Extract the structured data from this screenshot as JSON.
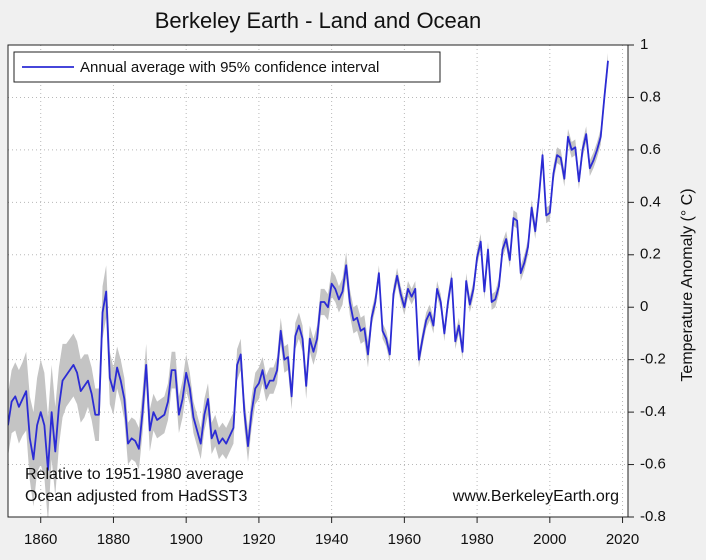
{
  "chart_data": {
    "type": "line",
    "title": "Berkeley Earth - Land and Ocean",
    "y_label": "Temperature Anomaly (° C)",
    "annotations": [
      "Relative to 1951-1980 average",
      "Ocean adjusted from HadSST3",
      "www.BerkeleyEarth.org"
    ],
    "x": [
      1851,
      1852,
      1853,
      1854,
      1855,
      1856,
      1857,
      1858,
      1859,
      1860,
      1861,
      1862,
      1863,
      1864,
      1865,
      1866,
      1867,
      1868,
      1869,
      1870,
      1871,
      1872,
      1873,
      1874,
      1875,
      1876,
      1877,
      1878,
      1879,
      1880,
      1881,
      1882,
      1883,
      1884,
      1885,
      1886,
      1887,
      1888,
      1889,
      1890,
      1891,
      1892,
      1893,
      1894,
      1895,
      1896,
      1897,
      1898,
      1899,
      1900,
      1901,
      1902,
      1903,
      1904,
      1905,
      1906,
      1907,
      1908,
      1909,
      1910,
      1911,
      1912,
      1913,
      1914,
      1915,
      1916,
      1917,
      1918,
      1919,
      1920,
      1921,
      1922,
      1923,
      1924,
      1925,
      1926,
      1927,
      1928,
      1929,
      1930,
      1931,
      1932,
      1933,
      1934,
      1935,
      1936,
      1937,
      1938,
      1939,
      1940,
      1941,
      1942,
      1943,
      1944,
      1945,
      1946,
      1947,
      1948,
      1949,
      1950,
      1951,
      1952,
      1953,
      1954,
      1955,
      1956,
      1957,
      1958,
      1959,
      1960,
      1961,
      1962,
      1963,
      1964,
      1965,
      1966,
      1967,
      1968,
      1969,
      1970,
      1971,
      1972,
      1973,
      1974,
      1975,
      1976,
      1977,
      1978,
      1979,
      1980,
      1981,
      1982,
      1983,
      1984,
      1985,
      1986,
      1987,
      1988,
      1989,
      1990,
      1991,
      1992,
      1993,
      1994,
      1995,
      1996,
      1997,
      1998,
      1999,
      2000,
      2001,
      2002,
      2003,
      2004,
      2005,
      2006,
      2007,
      2008,
      2009,
      2010,
      2011,
      2012,
      2013,
      2014,
      2015,
      2016
    ],
    "series": [
      {
        "name": "Annual average with 95% confidence interval",
        "color": "#2b2bd4",
        "band_color": "#c4c4c4",
        "values": [
          -0.45,
          -0.36,
          -0.34,
          -0.38,
          -0.35,
          -0.32,
          -0.5,
          -0.58,
          -0.45,
          -0.4,
          -0.45,
          -0.62,
          -0.4,
          -0.55,
          -0.38,
          -0.28,
          -0.26,
          -0.24,
          -0.22,
          -0.25,
          -0.32,
          -0.3,
          -0.28,
          -0.33,
          -0.41,
          -0.41,
          -0.02,
          0.06,
          -0.27,
          -0.32,
          -0.23,
          -0.28,
          -0.35,
          -0.52,
          -0.5,
          -0.51,
          -0.54,
          -0.4,
          -0.22,
          -0.47,
          -0.4,
          -0.43,
          -0.42,
          -0.41,
          -0.36,
          -0.24,
          -0.24,
          -0.41,
          -0.35,
          -0.25,
          -0.31,
          -0.42,
          -0.47,
          -0.52,
          -0.41,
          -0.35,
          -0.5,
          -0.47,
          -0.52,
          -0.5,
          -0.52,
          -0.49,
          -0.46,
          -0.22,
          -0.18,
          -0.4,
          -0.53,
          -0.4,
          -0.31,
          -0.29,
          -0.24,
          -0.31,
          -0.28,
          -0.28,
          -0.24,
          -0.09,
          -0.2,
          -0.19,
          -0.34,
          -0.11,
          -0.07,
          -0.12,
          -0.3,
          -0.12,
          -0.17,
          -0.12,
          0.02,
          0.02,
          0.0,
          0.09,
          0.07,
          0.03,
          0.06,
          0.16,
          0.02,
          -0.05,
          -0.04,
          -0.09,
          -0.08,
          -0.18,
          -0.04,
          0.02,
          0.13,
          -0.09,
          -0.12,
          -0.18,
          0.05,
          0.12,
          0.05,
          0.0,
          0.07,
          0.04,
          0.07,
          -0.2,
          -0.12,
          -0.05,
          -0.02,
          -0.07,
          0.07,
          0.02,
          -0.1,
          0.02,
          0.11,
          -0.13,
          -0.07,
          -0.17,
          0.1,
          0.01,
          0.07,
          0.19,
          0.25,
          0.06,
          0.22,
          0.02,
          0.03,
          0.08,
          0.22,
          0.26,
          0.18,
          0.34,
          0.33,
          0.13,
          0.17,
          0.23,
          0.38,
          0.29,
          0.42,
          0.58,
          0.35,
          0.36,
          0.51,
          0.58,
          0.57,
          0.49,
          0.65,
          0.6,
          0.61,
          0.48,
          0.6,
          0.66,
          0.53,
          0.56,
          0.6,
          0.65,
          0.8,
          0.94
        ],
        "errors": [
          0.12,
          0.12,
          0.13,
          0.14,
          0.14,
          0.15,
          0.16,
          0.18,
          0.18,
          0.2,
          0.2,
          0.2,
          0.18,
          0.17,
          0.15,
          0.14,
          0.12,
          0.12,
          0.12,
          0.12,
          0.12,
          0.12,
          0.1,
          0.1,
          0.1,
          0.1,
          0.1,
          0.1,
          0.1,
          0.09,
          0.08,
          0.08,
          0.08,
          0.08,
          0.08,
          0.08,
          0.08,
          0.08,
          0.08,
          0.08,
          0.07,
          0.07,
          0.07,
          0.07,
          0.07,
          0.07,
          0.07,
          0.07,
          0.07,
          0.07,
          0.06,
          0.06,
          0.06,
          0.06,
          0.06,
          0.06,
          0.06,
          0.06,
          0.06,
          0.06,
          0.06,
          0.06,
          0.06,
          0.06,
          0.06,
          0.06,
          0.06,
          0.06,
          0.06,
          0.06,
          0.05,
          0.05,
          0.05,
          0.05,
          0.05,
          0.05,
          0.05,
          0.05,
          0.05,
          0.05,
          0.05,
          0.05,
          0.05,
          0.05,
          0.05,
          0.05,
          0.05,
          0.05,
          0.05,
          0.05,
          0.05,
          0.05,
          0.05,
          0.05,
          0.05,
          0.05,
          0.05,
          0.05,
          0.05,
          0.05,
          0.03,
          0.03,
          0.03,
          0.03,
          0.03,
          0.03,
          0.03,
          0.03,
          0.03,
          0.03,
          0.03,
          0.03,
          0.03,
          0.03,
          0.03,
          0.03,
          0.03,
          0.03,
          0.03,
          0.03,
          0.03,
          0.03,
          0.03,
          0.03,
          0.03,
          0.03,
          0.03,
          0.03,
          0.03,
          0.03,
          0.03,
          0.03,
          0.03,
          0.03,
          0.03,
          0.03,
          0.03,
          0.03,
          0.03,
          0.03,
          0.03,
          0.03,
          0.03,
          0.03,
          0.03,
          0.03,
          0.03,
          0.03,
          0.03,
          0.03,
          0.03,
          0.03,
          0.03,
          0.03,
          0.03,
          0.03,
          0.03,
          0.03,
          0.03,
          0.03,
          0.03,
          0.03,
          0.03,
          0.03,
          0.03,
          0.03
        ]
      }
    ],
    "xlim": [
      1851,
      2021.5
    ],
    "xticks": [
      1860,
      1880,
      1900,
      1920,
      1940,
      1960,
      1980,
      2000,
      2020
    ],
    "ylim": [
      -0.8,
      1
    ],
    "yticks": [
      1,
      0.8,
      0.6,
      0.4,
      0.2,
      0,
      -0.2,
      -0.4,
      -0.6,
      -0.8
    ],
    "grid": true,
    "legend": "upper left"
  }
}
